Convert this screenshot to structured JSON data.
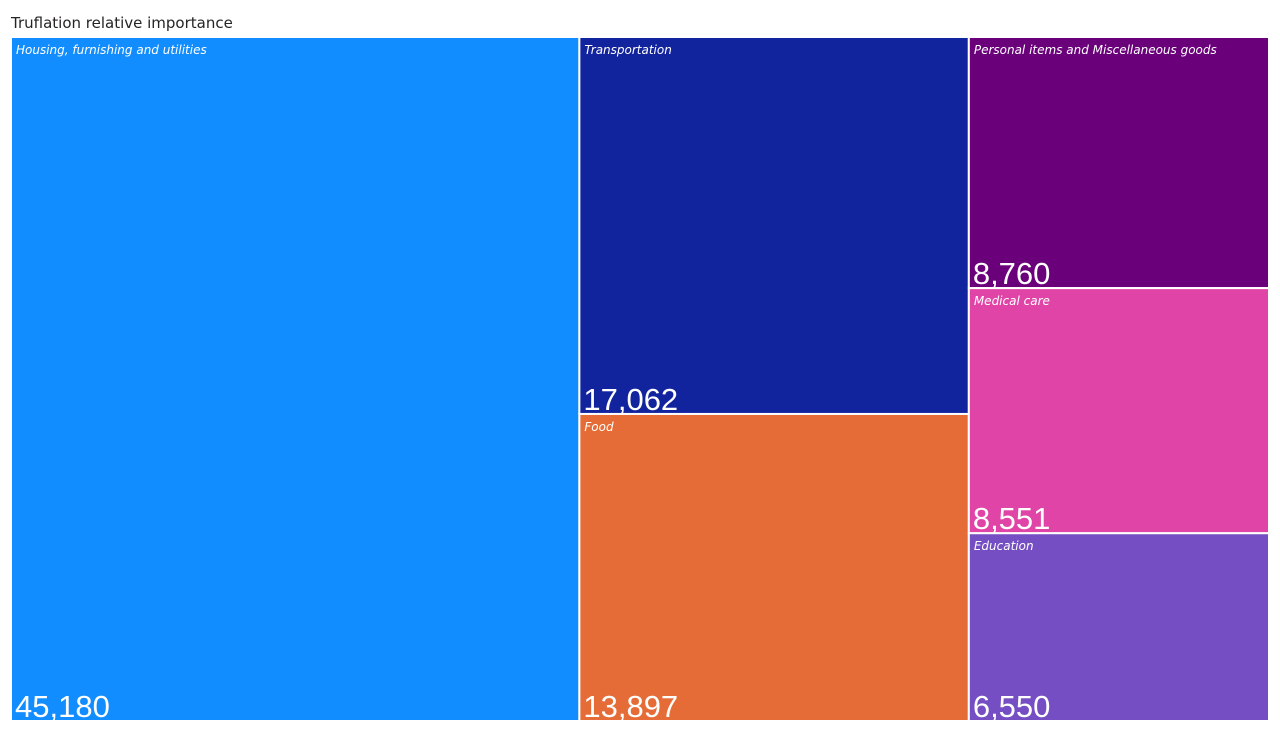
{
  "chart_data": {
    "type": "treemap",
    "title": "Truflation relative importance",
    "categories": [
      "Housing, furnishing and utilities",
      "Transportation",
      "Food",
      "Personal items and Miscellaneous goods",
      "Medical care",
      "Education"
    ],
    "values": [
      45180,
      17062,
      13897,
      8760,
      8551,
      6550
    ],
    "value_labels": [
      "45,180",
      "17,062",
      "13,897",
      "8,760",
      "8,551",
      "6,550"
    ],
    "colors": [
      "#118dff",
      "#12239e",
      "#e66c37",
      "#6b007b",
      "#e044a7",
      "#744ec2"
    ]
  }
}
